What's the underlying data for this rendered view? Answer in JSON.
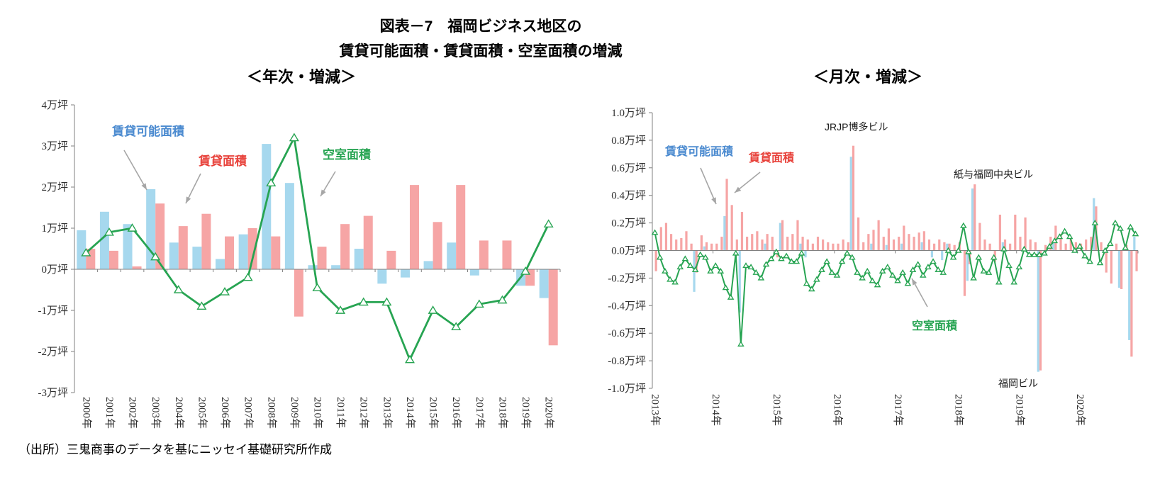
{
  "title": {
    "line1": "図表－7　福岡ビジネス地区の",
    "line2": "賃貸可能面積・賃貸面積・空室面積の増減"
  },
  "source": "（出所）三鬼商事のデータを基にニッセイ基礎研究所作成",
  "colors": {
    "rentable_bar": "#A6D8EE",
    "rented_bar": "#F6A5A5",
    "vacant_line": "#27A452",
    "rentable_label": "#4C8BD0",
    "rented_label": "#E8433C",
    "vacant_label": "#27A452",
    "axis": "#808080",
    "tick_text": "#303030",
    "arrow": "#A6A6A6",
    "annotation_text": "#1A1A1A"
  },
  "chart_data": [
    {
      "id": "annual",
      "type": "bar-line-combo",
      "title": "＜年次・増減＞",
      "ylabel": "万坪",
      "ylim": [
        -3,
        4
      ],
      "grid": false,
      "categories": [
        "2000年",
        "2001年",
        "2002年",
        "2003年",
        "2004年",
        "2005年",
        "2006年",
        "2007年",
        "2008年",
        "2009年",
        "2010年",
        "2011年",
        "2012年",
        "2013年",
        "2014年",
        "2015年",
        "2016年",
        "2017年",
        "2018年",
        "2019年",
        "2020年"
      ],
      "x_labels": [
        "2000年",
        "2001年",
        "2002年",
        "2003年",
        "2004年",
        "2005年",
        "2006年",
        "2007年",
        "2008年",
        "2009年",
        "2010年",
        "2011年",
        "2012年",
        "2013年",
        "2014年",
        "2015年",
        "2016年",
        "2017年",
        "2018年",
        "2019年",
        "2020年"
      ],
      "y_ticks": {
        "labels": [
          "4万坪",
          "3万坪",
          "2万坪",
          "1万坪",
          "0万坪",
          "-1万坪",
          "-2万坪",
          "-3万坪"
        ],
        "values": [
          4,
          3,
          2,
          1,
          0,
          -1,
          -2,
          -3
        ]
      },
      "series": [
        {
          "key": "rentable",
          "name": "賃貸可能面積",
          "type": "bar",
          "color": "#A6D8EE",
          "values": [
            0.95,
            1.4,
            1.1,
            1.95,
            0.65,
            0.55,
            0.25,
            0.85,
            3.05,
            2.1,
            0.1,
            0.1,
            0.5,
            -0.35,
            -0.2,
            0.2,
            0.65,
            -0.15,
            0.0,
            -0.4,
            -0.7
          ]
        },
        {
          "key": "rented",
          "name": "賃貸面積",
          "type": "bar",
          "color": "#F6A5A5",
          "values": [
            0.5,
            0.45,
            0.07,
            1.6,
            1.05,
            1.35,
            0.8,
            1.0,
            0.8,
            -1.15,
            0.55,
            1.1,
            1.3,
            0.45,
            2.05,
            1.15,
            2.05,
            0.7,
            0.7,
            -0.4,
            -1.85
          ]
        },
        {
          "key": "vacant",
          "name": "空室面積",
          "type": "line",
          "marker": "triangle",
          "color": "#27A452",
          "values": [
            0.4,
            0.9,
            1.0,
            0.3,
            -0.5,
            -0.9,
            -0.55,
            -0.2,
            2.1,
            3.2,
            -0.45,
            -1.0,
            -0.8,
            -0.8,
            -2.2,
            -1.0,
            -1.4,
            -0.85,
            -0.75,
            -0.05,
            1.1
          ]
        }
      ],
      "annotations": []
    },
    {
      "id": "monthly",
      "type": "bar-line-combo",
      "title": "＜月次・増減＞",
      "ylabel": "万坪",
      "ylim": [
        -1.0,
        1.0
      ],
      "grid": false,
      "months_per_label": 12,
      "x_labels": [
        "2013年",
        "2014年",
        "2015年",
        "2016年",
        "2017年",
        "2018年",
        "2019年",
        "2020年"
      ],
      "y_ticks": {
        "labels": [
          "1.0万坪",
          "0.8万坪",
          "0.6万坪",
          "0.4万坪",
          "0.2万坪",
          "0.0万坪",
          "-0.2万坪",
          "-0.4万坪",
          "-0.6万坪",
          "-0.8万坪",
          "-1.0万坪"
        ],
        "values": [
          1.0,
          0.8,
          0.6,
          0.4,
          0.2,
          0.0,
          -0.2,
          -0.4,
          -0.6,
          -0.8,
          -1.0
        ]
      },
      "series": [
        {
          "key": "rentable",
          "name": "賃貸可能面積",
          "type": "bar",
          "color": "#A6D8EE",
          "values": [
            0,
            0,
            0,
            0,
            0,
            0,
            0,
            0,
            -0.3,
            0,
            0.03,
            0,
            0,
            0,
            0.25,
            0,
            0,
            -0.45,
            0,
            0,
            0,
            0,
            0.05,
            0,
            0,
            0.2,
            0,
            0,
            0,
            0.05,
            -0.05,
            0,
            0,
            0,
            0,
            0,
            0,
            0,
            0,
            0.68,
            0,
            0,
            0,
            0.05,
            0,
            0,
            0.04,
            0,
            0,
            0.05,
            0,
            0,
            0,
            0.06,
            0,
            -0.05,
            0,
            -0.07,
            0.05,
            0,
            0,
            0,
            -0.22,
            0.45,
            0,
            0,
            0,
            0,
            0,
            0.06,
            0,
            0,
            0,
            0,
            0,
            0,
            -0.88,
            0,
            0,
            0.06,
            0,
            0,
            0,
            0,
            0,
            0,
            0,
            0.38,
            0,
            0,
            0,
            0,
            -0.27,
            0,
            -0.65,
            0.1
          ]
        },
        {
          "key": "rented",
          "name": "賃貸面積",
          "type": "bar",
          "color": "#F6A5A5",
          "values": [
            -0.15,
            0.17,
            0.2,
            0.12,
            0.08,
            0.09,
            0.14,
            0.05,
            -0.16,
            0.11,
            0.06,
            0.05,
            0.05,
            0.1,
            0.52,
            0.33,
            0.08,
            0.28,
            0.1,
            0.12,
            0.14,
            0.08,
            0.12,
            0.1,
            -0.05,
            0.22,
            0.1,
            0.12,
            0.22,
            0.1,
            0.08,
            0.05,
            0.1,
            0.08,
            0.06,
            0.05,
            0.05,
            0.08,
            0.06,
            0.76,
            0.24,
            0.06,
            0.12,
            0.15,
            0.22,
            0.1,
            0.16,
            0.08,
            0.1,
            0.18,
            0.12,
            0.1,
            0.13,
            0.14,
            0.08,
            0.05,
            0.08,
            0.06,
            0.05,
            0.04,
            0.06,
            -0.33,
            -0.1,
            0.48,
            0.2,
            0.08,
            0.05,
            -0.08,
            0.26,
            0.08,
            0.05,
            0.26,
            0.1,
            0.24,
            0.08,
            0.06,
            -0.87,
            0.04,
            0.1,
            0.18,
            0.12,
            0.05,
            0.08,
            0.06,
            0.05,
            0.08,
            0.1,
            0.32,
            0.06,
            -0.16,
            -0.24,
            0.05,
            -0.28,
            0.04,
            -0.77,
            -0.15
          ]
        },
        {
          "key": "vacant",
          "name": "空室面積",
          "type": "line",
          "marker": "triangle",
          "color": "#27A452",
          "values": [
            0.13,
            -0.05,
            -0.15,
            -0.21,
            -0.23,
            -0.12,
            -0.06,
            -0.11,
            -0.14,
            -0.03,
            -0.05,
            -0.15,
            -0.11,
            -0.15,
            -0.27,
            -0.34,
            -0.02,
            -0.68,
            -0.11,
            -0.12,
            -0.16,
            -0.2,
            -0.1,
            -0.06,
            -0.01,
            -0.06,
            -0.04,
            -0.08,
            -0.08,
            -0.02,
            -0.24,
            -0.28,
            -0.21,
            -0.14,
            -0.08,
            -0.16,
            -0.18,
            -0.08,
            -0.02,
            -0.05,
            -0.16,
            -0.2,
            -0.15,
            -0.22,
            -0.25,
            -0.15,
            -0.12,
            -0.18,
            -0.22,
            -0.16,
            -0.24,
            -0.14,
            -0.1,
            -0.18,
            -0.12,
            -0.08,
            -0.14,
            -0.16,
            0.0,
            -0.05,
            0.0,
            0.18,
            -0.01,
            -0.2,
            -0.05,
            -0.15,
            -0.16,
            -0.05,
            -0.23,
            0.01,
            -0.11,
            -0.23,
            -0.12,
            0.01,
            -0.03,
            -0.03,
            -0.03,
            -0.02,
            0.03,
            0.07,
            0.1,
            0.14,
            0.1,
            0.0,
            0.03,
            -0.04,
            -0.08,
            0.2,
            -0.09,
            0.0,
            0.05,
            0.2,
            0.16,
            0.02,
            0.17,
            0.12
          ]
        }
      ],
      "annotations": [
        {
          "text": "JRJP博多ビル",
          "anchor_month": "2016-04"
        },
        {
          "text": "紙与福岡中央ビル",
          "anchor_month": "2018-04"
        },
        {
          "text": "福岡ビル",
          "anchor_month": "2019-05"
        }
      ]
    }
  ]
}
